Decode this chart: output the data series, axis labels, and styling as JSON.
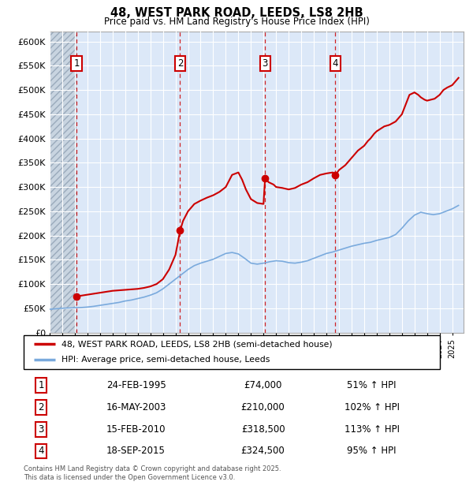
{
  "title": "48, WEST PARK ROAD, LEEDS, LS8 2HB",
  "subtitle": "Price paid vs. HM Land Registry's House Price Index (HPI)",
  "ylim": [
    0,
    620000
  ],
  "yticks": [
    0,
    50000,
    100000,
    150000,
    200000,
    250000,
    300000,
    350000,
    400000,
    450000,
    500000,
    550000,
    600000
  ],
  "xlim_start": 1993.0,
  "xlim_end": 2025.9,
  "hatch_end": 1995.13,
  "bg_hatch_color": "#c8d4e0",
  "bg_solid_color": "#dce8f8",
  "grid_color": "#ffffff",
  "sale_color": "#cc0000",
  "hpi_color": "#7aaadd",
  "sale_label": "48, WEST PARK ROAD, LEEDS, LS8 2HB (semi-detached house)",
  "hpi_label": "HPI: Average price, semi-detached house, Leeds",
  "transactions": [
    {
      "num": 1,
      "date_x": 1995.13,
      "price": 74000
    },
    {
      "num": 2,
      "date_x": 2003.37,
      "price": 210000
    },
    {
      "num": 3,
      "date_x": 2010.12,
      "price": 318500
    },
    {
      "num": 4,
      "date_x": 2015.71,
      "price": 324500
    }
  ],
  "table": [
    {
      "num": "1",
      "date": "24-FEB-1995",
      "price": "£74,000",
      "hpi": "51% ↑ HPI"
    },
    {
      "num": "2",
      "date": "16-MAY-2003",
      "price": "£210,000",
      "hpi": "102% ↑ HPI"
    },
    {
      "num": "3",
      "date": "15-FEB-2010",
      "price": "£318,500",
      "hpi": "113% ↑ HPI"
    },
    {
      "num": "4",
      "date": "18-SEP-2015",
      "price": "£324,500",
      "hpi": "95% ↑ HPI"
    }
  ],
  "footnote": "Contains HM Land Registry data © Crown copyright and database right 2025.\nThis data is licensed under the Open Government Licence v3.0.",
  "sale_line_x": [
    1995.13,
    1995.5,
    1996.0,
    1996.5,
    1997.0,
    1997.5,
    1998.0,
    1998.5,
    1999.0,
    1999.5,
    2000.0,
    2000.5,
    2001.0,
    2001.5,
    2002.0,
    2002.5,
    2003.0,
    2003.37,
    2003.6,
    2004.0,
    2004.5,
    2005.0,
    2005.5,
    2006.0,
    2006.5,
    2007.0,
    2007.5,
    2008.0,
    2008.3,
    2008.6,
    2009.0,
    2009.5,
    2010.0,
    2010.12,
    2010.4,
    2010.8,
    2011.0,
    2011.5,
    2012.0,
    2012.5,
    2013.0,
    2013.5,
    2014.0,
    2014.5,
    2015.0,
    2015.5,
    2015.71,
    2016.0,
    2016.5,
    2017.0,
    2017.5,
    2018.0,
    2018.3,
    2018.5,
    2018.8,
    2019.0,
    2019.3,
    2019.6,
    2020.0,
    2020.5,
    2021.0,
    2021.3,
    2021.6,
    2022.0,
    2022.3,
    2022.5,
    2022.8,
    2023.0,
    2023.3,
    2023.6,
    2024.0,
    2024.3,
    2024.6,
    2025.0,
    2025.5
  ],
  "sale_line_y": [
    74000,
    76000,
    78000,
    80000,
    82000,
    84000,
    86000,
    87000,
    88000,
    89000,
    90000,
    92000,
    95000,
    100000,
    110000,
    130000,
    160000,
    210000,
    230000,
    250000,
    265000,
    272000,
    278000,
    283000,
    290000,
    300000,
    325000,
    330000,
    315000,
    295000,
    275000,
    267000,
    265000,
    318500,
    310000,
    305000,
    300000,
    298000,
    295000,
    298000,
    305000,
    310000,
    318000,
    325000,
    328000,
    330000,
    324500,
    335000,
    345000,
    360000,
    375000,
    385000,
    395000,
    400000,
    410000,
    415000,
    420000,
    425000,
    428000,
    435000,
    450000,
    470000,
    490000,
    495000,
    490000,
    485000,
    480000,
    478000,
    480000,
    482000,
    490000,
    500000,
    505000,
    510000,
    525000
  ],
  "hpi_line_x": [
    1993.0,
    1993.5,
    1994.0,
    1994.5,
    1995.0,
    1995.5,
    1996.0,
    1996.5,
    1997.0,
    1997.5,
    1998.0,
    1998.5,
    1999.0,
    1999.5,
    2000.0,
    2000.5,
    2001.0,
    2001.5,
    2002.0,
    2002.5,
    2003.0,
    2003.5,
    2004.0,
    2004.5,
    2005.0,
    2005.5,
    2006.0,
    2006.5,
    2007.0,
    2007.5,
    2008.0,
    2008.5,
    2009.0,
    2009.5,
    2010.0,
    2010.5,
    2011.0,
    2011.5,
    2012.0,
    2012.5,
    2013.0,
    2013.5,
    2014.0,
    2014.5,
    2015.0,
    2015.5,
    2016.0,
    2016.5,
    2017.0,
    2017.5,
    2018.0,
    2018.5,
    2019.0,
    2019.5,
    2020.0,
    2020.5,
    2021.0,
    2021.5,
    2022.0,
    2022.5,
    2023.0,
    2023.5,
    2024.0,
    2024.5,
    2025.0,
    2025.5
  ],
  "hpi_line_y": [
    48000,
    49000,
    50000,
    50500,
    51000,
    51500,
    52500,
    54000,
    56000,
    58000,
    60000,
    62000,
    65000,
    67000,
    70000,
    73000,
    77000,
    82000,
    90000,
    100000,
    110000,
    120000,
    130000,
    138000,
    143000,
    147000,
    151000,
    157000,
    163000,
    165000,
    162000,
    153000,
    143000,
    141000,
    143000,
    146000,
    148000,
    147000,
    144000,
    143000,
    145000,
    148000,
    153000,
    158000,
    163000,
    166000,
    170000,
    174000,
    178000,
    181000,
    184000,
    186000,
    190000,
    193000,
    196000,
    202000,
    215000,
    230000,
    242000,
    248000,
    245000,
    243000,
    245000,
    250000,
    255000,
    262000
  ]
}
